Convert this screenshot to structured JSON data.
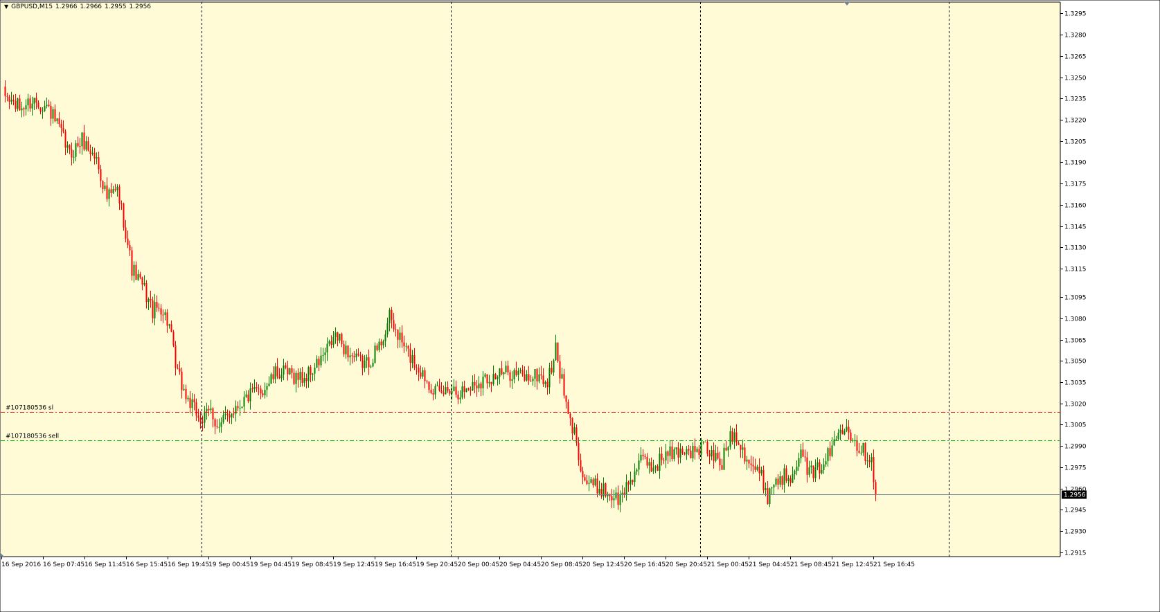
{
  "header": {
    "dropdown_icon": "triangle-down-icon",
    "symbol": "GBPUSD,M15",
    "open": "1.2966",
    "high": "1.2966",
    "low": "1.2955",
    "close": "1.2956"
  },
  "colors": {
    "background": "#FFFBD7",
    "bull": "#008000",
    "bear": "#FF0000",
    "grid": "#000000",
    "sl_line": "#FF0000",
    "entry_line": "#00C000",
    "price_line": "#6E8296",
    "price_tag_bg": "#000000",
    "price_tag_text": "#FFFFFF"
  },
  "chart_data": {
    "type": "candlestick",
    "symbol": "GBPUSD",
    "timeframe": "M15",
    "ylim": [
      1.2912,
      1.3303
    ],
    "y_ticks": [
      "1.3295",
      "1.3280",
      "1.3265",
      "1.3250",
      "1.3235",
      "1.3220",
      "1.3205",
      "1.3190",
      "1.3175",
      "1.3160",
      "1.3145",
      "1.3130",
      "1.3115",
      "1.3095",
      "1.3080",
      "1.3065",
      "1.3050",
      "1.3035",
      "1.3020",
      "1.3005",
      "1.2990",
      "1.2975",
      "1.2960",
      "1.2945",
      "1.2930",
      "1.2915"
    ],
    "x_labels": [
      "16 Sep 2016",
      "16 Sep 07:45",
      "16 Sep 11:45",
      "16 Sep 15:45",
      "16 Sep 19:45",
      "19 Sep 00:45",
      "19 Sep 04:45",
      "19 Sep 08:45",
      "19 Sep 12:45",
      "19 Sep 16:45",
      "19 Sep 20:45",
      "20 Sep 00:45",
      "20 Sep 04:45",
      "20 Sep 08:45",
      "20 Sep 12:45",
      "20 Sep 16:45",
      "20 Sep 20:45",
      "21 Sep 00:45",
      "21 Sep 04:45",
      "21 Sep 08:45",
      "21 Sep 12:45",
      "21 Sep 16:45"
    ],
    "period_separators": [
      "19 Sep 2016",
      "20 Sep 2016",
      "21 Sep 2016",
      "22 Sep 2016"
    ],
    "current_price": "1.2956",
    "orders": [
      {
        "label": "#107180536 sl",
        "price": 1.3014,
        "kind": "stop-loss"
      },
      {
        "label": "#107180536 sell",
        "price": 1.2994,
        "kind": "entry"
      }
    ],
    "close_path": [
      [
        0,
        1.3238
      ],
      [
        8,
        1.3228
      ],
      [
        15,
        1.3234
      ],
      [
        22,
        1.3228
      ],
      [
        28,
        1.321
      ],
      [
        32,
        1.3195
      ],
      [
        38,
        1.3206
      ],
      [
        45,
        1.3192
      ],
      [
        50,
        1.3165
      ],
      [
        55,
        1.317
      ],
      [
        58,
        1.315
      ],
      [
        62,
        1.3115
      ],
      [
        68,
        1.31
      ],
      [
        72,
        1.3085
      ],
      [
        76,
        1.3088
      ],
      [
        80,
        1.3075
      ],
      [
        83,
        1.3045
      ],
      [
        88,
        1.3025
      ],
      [
        92,
        1.3015
      ],
      [
        96,
        1.3008
      ],
      [
        100,
        1.3015
      ],
      [
        104,
        1.3002
      ],
      [
        108,
        1.3012
      ],
      [
        112,
        1.3018
      ],
      [
        118,
        1.3025
      ],
      [
        125,
        1.303
      ],
      [
        132,
        1.3042
      ],
      [
        138,
        1.304
      ],
      [
        145,
        1.3038
      ],
      [
        150,
        1.3045
      ],
      [
        155,
        1.3055
      ],
      [
        160,
        1.3068
      ],
      [
        165,
        1.3058
      ],
      [
        170,
        1.305
      ],
      [
        175,
        1.3048
      ],
      [
        181,
        1.306
      ],
      [
        186,
        1.308
      ],
      [
        190,
        1.3068
      ],
      [
        195,
        1.3055
      ],
      [
        200,
        1.3045
      ],
      [
        205,
        1.3035
      ],
      [
        210,
        1.3025
      ],
      [
        215,
        1.3032
      ],
      [
        220,
        1.3028
      ],
      [
        225,
        1.3032
      ],
      [
        232,
        1.3038
      ],
      [
        238,
        1.304
      ],
      [
        245,
        1.3042
      ],
      [
        252,
        1.3038
      ],
      [
        258,
        1.304
      ],
      [
        262,
        1.3034
      ],
      [
        266,
        1.3058
      ],
      [
        269,
        1.3035
      ],
      [
        272,
        1.301
      ],
      [
        276,
        1.2995
      ],
      [
        279,
        1.2968
      ],
      [
        283,
        1.2962
      ],
      [
        288,
        1.296
      ],
      [
        293,
        1.2955
      ],
      [
        297,
        1.2952
      ],
      [
        300,
        1.2962
      ],
      [
        304,
        1.2972
      ],
      [
        308,
        1.298
      ],
      [
        313,
        1.2975
      ],
      [
        318,
        1.2983
      ],
      [
        323,
        1.2985
      ],
      [
        328,
        1.2988
      ],
      [
        333,
        1.2985
      ],
      [
        337,
        1.299
      ],
      [
        342,
        1.2982
      ],
      [
        346,
        1.2978
      ],
      [
        350,
        1.2998
      ],
      [
        353,
        1.2998
      ],
      [
        357,
        1.2985
      ],
      [
        361,
        1.2975
      ],
      [
        365,
        1.2968
      ],
      [
        368,
        1.2955
      ],
      [
        371,
        1.2965
      ],
      [
        375,
        1.2968
      ],
      [
        379,
        1.297
      ],
      [
        383,
        1.2985
      ],
      [
        387,
        1.2975
      ],
      [
        390,
        1.2968
      ],
      [
        394,
        1.2978
      ],
      [
        398,
        1.2985
      ],
      [
        402,
        1.3
      ],
      [
        406,
        1.3008
      ],
      [
        409,
        1.2995
      ],
      [
        412,
        1.299
      ],
      [
        415,
        1.2985
      ],
      [
        418,
        1.2982
      ],
      [
        420,
        1.2956
      ]
    ]
  }
}
